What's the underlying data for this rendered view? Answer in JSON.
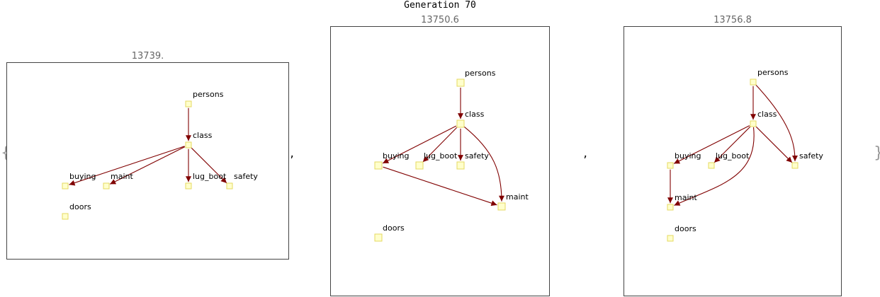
{
  "title": "Generation 70",
  "colors": {
    "edge": "#800000",
    "node_fill": "#ffffcc",
    "node_stroke": "#e6d860"
  },
  "punctuation": {
    "open_brace": "{",
    "close_brace": "}",
    "separator": ","
  },
  "graphs": [
    {
      "score": "13739.",
      "nodes": [
        "persons",
        "class",
        "buying",
        "maint",
        "lug_boot",
        "safety",
        "doors"
      ],
      "edges": [
        {
          "from": "persons",
          "to": "class"
        },
        {
          "from": "class",
          "to": "buying"
        },
        {
          "from": "class",
          "to": "maint"
        },
        {
          "from": "class",
          "to": "lug_boot"
        },
        {
          "from": "class",
          "to": "safety"
        }
      ]
    },
    {
      "score": "13750.6",
      "nodes": [
        "persons",
        "class",
        "buying",
        "lug_boot",
        "safety",
        "maint",
        "doors"
      ],
      "edges": [
        {
          "from": "persons",
          "to": "class"
        },
        {
          "from": "class",
          "to": "buying"
        },
        {
          "from": "class",
          "to": "lug_boot"
        },
        {
          "from": "class",
          "to": "safety"
        },
        {
          "from": "class",
          "to": "maint"
        },
        {
          "from": "buying",
          "to": "maint"
        }
      ]
    },
    {
      "score": "13756.8",
      "nodes": [
        "persons",
        "class",
        "buying",
        "lug_boot",
        "safety",
        "maint",
        "doors"
      ],
      "edges": [
        {
          "from": "persons",
          "to": "class"
        },
        {
          "from": "persons",
          "to": "safety"
        },
        {
          "from": "class",
          "to": "buying"
        },
        {
          "from": "class",
          "to": "lug_boot"
        },
        {
          "from": "class",
          "to": "safety"
        },
        {
          "from": "class",
          "to": "maint"
        },
        {
          "from": "buying",
          "to": "maint"
        }
      ]
    }
  ]
}
